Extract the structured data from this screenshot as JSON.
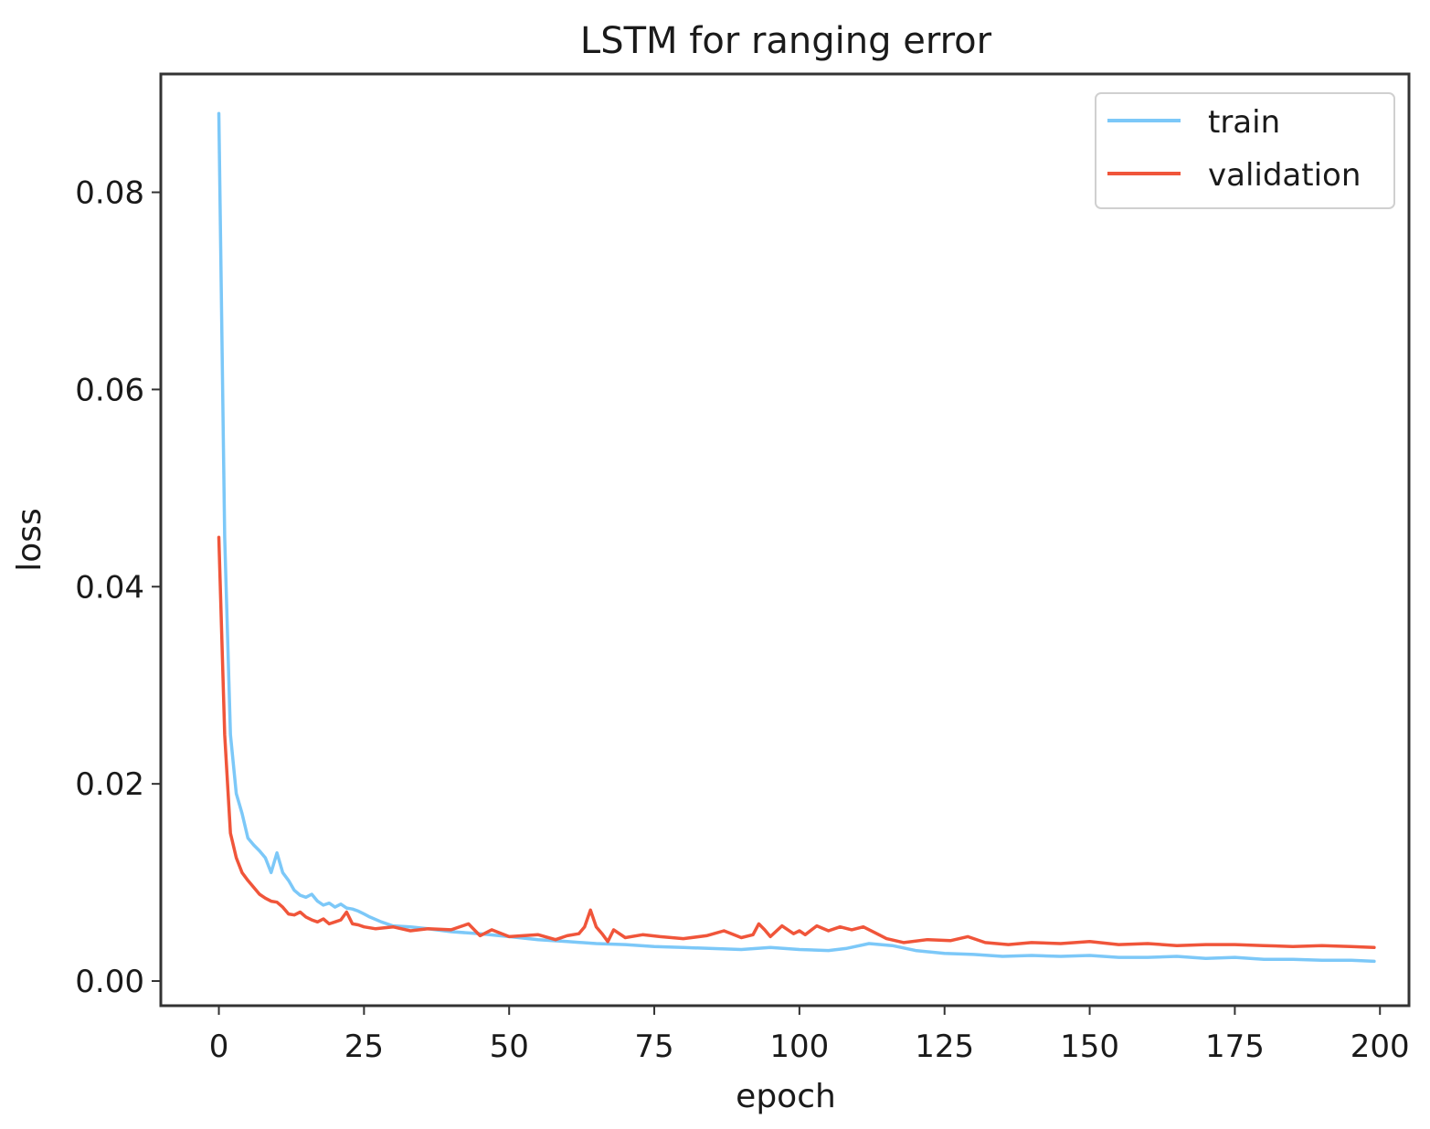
{
  "chart_data": {
    "type": "line",
    "title": "LSTM for ranging error",
    "xlabel": "epoch",
    "ylabel": "loss",
    "xlim": [
      -10,
      205
    ],
    "ylim": [
      -0.0025,
      0.092
    ],
    "xticks": [
      0,
      25,
      50,
      75,
      100,
      125,
      150,
      175,
      200
    ],
    "xtick_labels": [
      "0",
      "25",
      "50",
      "75",
      "100",
      "125",
      "150",
      "175",
      "200"
    ],
    "yticks": [
      0.0,
      0.02,
      0.04,
      0.06,
      0.08
    ],
    "ytick_labels": [
      "0.00",
      "0.02",
      "0.04",
      "0.06",
      "0.08"
    ],
    "grid": false,
    "legend": {
      "position": "top-right"
    },
    "series": [
      {
        "name": "train",
        "color": "#7cc8f8",
        "x": [
          0,
          1,
          2,
          3,
          4,
          5,
          6,
          7,
          8,
          9,
          10,
          11,
          12,
          13,
          14,
          15,
          16,
          17,
          18,
          19,
          20,
          21,
          22,
          23,
          24,
          25,
          26,
          28,
          30,
          33,
          36,
          40,
          45,
          50,
          55,
          60,
          65,
          70,
          75,
          80,
          85,
          90,
          95,
          100,
          105,
          108,
          112,
          116,
          120,
          125,
          130,
          135,
          140,
          145,
          150,
          155,
          160,
          165,
          170,
          175,
          180,
          185,
          190,
          195,
          199
        ],
        "y": [
          0.088,
          0.045,
          0.025,
          0.019,
          0.017,
          0.0145,
          0.0138,
          0.0132,
          0.0125,
          0.011,
          0.013,
          0.011,
          0.0102,
          0.0092,
          0.0087,
          0.0085,
          0.0088,
          0.0081,
          0.0077,
          0.0079,
          0.0075,
          0.0078,
          0.0074,
          0.0073,
          0.0071,
          0.0068,
          0.0065,
          0.006,
          0.0056,
          0.0055,
          0.0053,
          0.005,
          0.0048,
          0.0045,
          0.0042,
          0.004,
          0.0038,
          0.0037,
          0.0035,
          0.0034,
          0.0033,
          0.0032,
          0.0034,
          0.0032,
          0.0031,
          0.0033,
          0.0038,
          0.0036,
          0.0031,
          0.0028,
          0.0027,
          0.0025,
          0.0026,
          0.0025,
          0.0026,
          0.0024,
          0.0024,
          0.0025,
          0.0023,
          0.0024,
          0.0022,
          0.0022,
          0.0021,
          0.0021,
          0.002
        ]
      },
      {
        "name": "validation",
        "color": "#f0553a",
        "x": [
          0,
          1,
          2,
          3,
          4,
          5,
          6,
          7,
          8,
          9,
          10,
          11,
          12,
          13,
          14,
          15,
          16,
          17,
          18,
          19,
          20,
          21,
          22,
          23,
          24,
          25,
          27,
          30,
          33,
          36,
          40,
          43,
          45,
          47,
          50,
          55,
          58,
          60,
          62,
          63,
          64,
          65,
          66,
          67,
          68,
          70,
          73,
          76,
          80,
          84,
          87,
          90,
          92,
          93,
          94,
          95,
          97,
          99,
          100,
          101,
          103,
          105,
          107,
          109,
          111,
          113,
          115,
          118,
          122,
          126,
          129,
          132,
          136,
          140,
          145,
          150,
          155,
          160,
          165,
          170,
          175,
          180,
          185,
          190,
          195,
          199
        ],
        "y": [
          0.045,
          0.025,
          0.015,
          0.0125,
          0.011,
          0.0102,
          0.0095,
          0.0088,
          0.0084,
          0.0081,
          0.008,
          0.0075,
          0.0068,
          0.0067,
          0.007,
          0.0065,
          0.0062,
          0.006,
          0.0063,
          0.0058,
          0.006,
          0.0062,
          0.007,
          0.0058,
          0.0057,
          0.0055,
          0.0053,
          0.0055,
          0.0051,
          0.0053,
          0.0052,
          0.0058,
          0.0046,
          0.0052,
          0.0045,
          0.0047,
          0.0042,
          0.0046,
          0.0048,
          0.0055,
          0.0072,
          0.0055,
          0.0048,
          0.004,
          0.0052,
          0.0044,
          0.0047,
          0.0045,
          0.0043,
          0.0046,
          0.0051,
          0.0044,
          0.0047,
          0.0058,
          0.0052,
          0.0045,
          0.0056,
          0.0048,
          0.0051,
          0.0047,
          0.0056,
          0.0051,
          0.0055,
          0.0052,
          0.0055,
          0.0049,
          0.0043,
          0.0039,
          0.0042,
          0.0041,
          0.0045,
          0.0039,
          0.0037,
          0.0039,
          0.0038,
          0.004,
          0.0037,
          0.0038,
          0.0036,
          0.0037,
          0.0037,
          0.0036,
          0.0035,
          0.0036,
          0.0035,
          0.0034
        ]
      }
    ]
  }
}
